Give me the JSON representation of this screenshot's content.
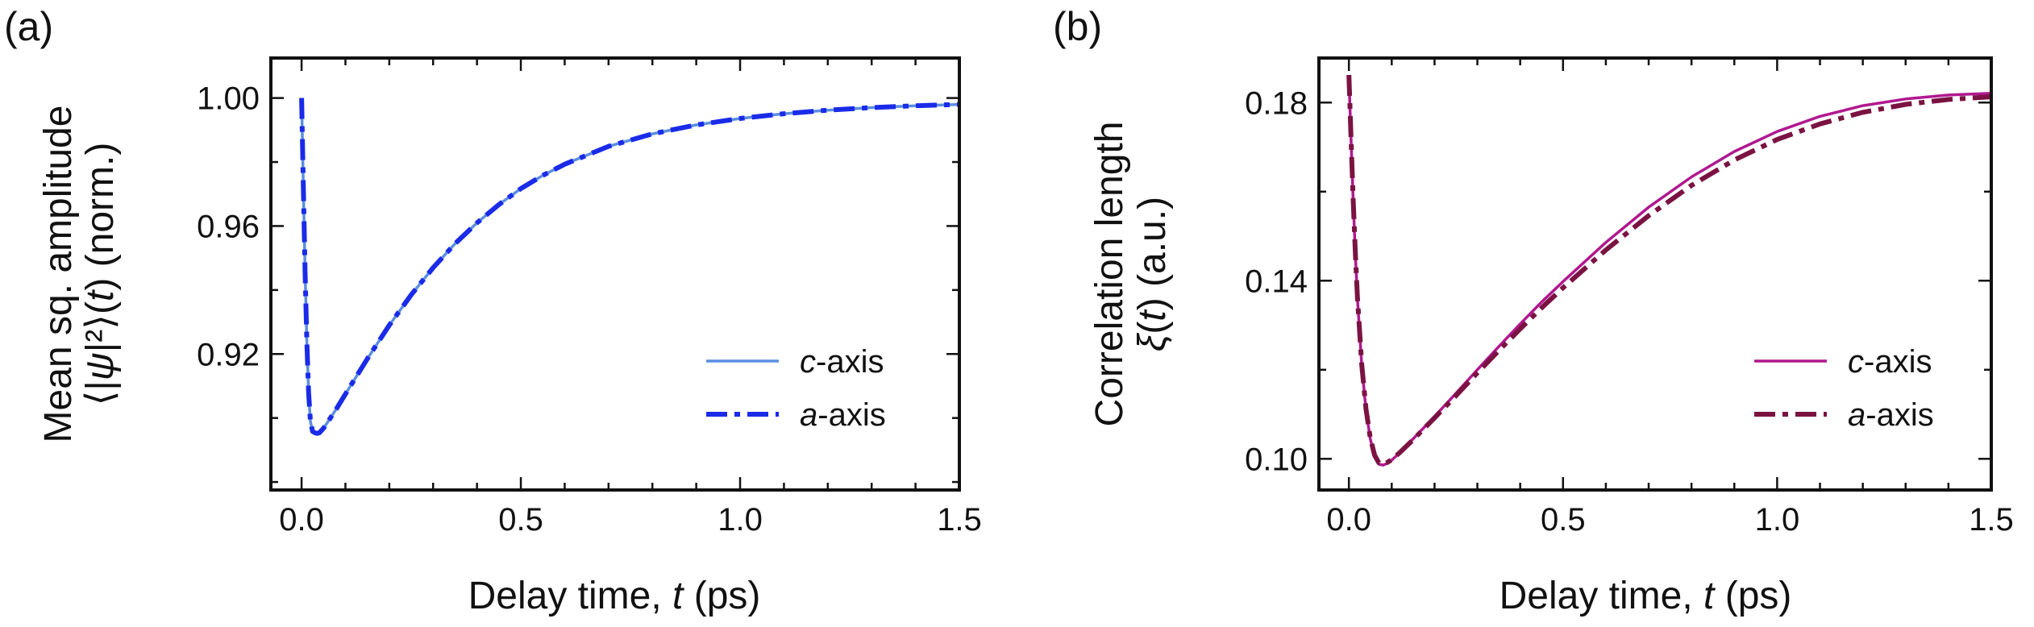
{
  "figure": {
    "panels": [
      {
        "label": "(a)",
        "ylabel_line1": "Mean sq. amplitude",
        "ylabel_line2_parts": [
          "⟨|",
          "ψ",
          "|²⟩(",
          "t",
          ") (norm.)"
        ],
        "xlabel_parts": [
          "Delay time, ",
          "t",
          " (ps)"
        ]
      },
      {
        "label": "(b)",
        "ylabel_line1": "Correlation length",
        "ylabel_line2_parts": [
          "ξ",
          "(",
          "t",
          ") (a.u.)"
        ],
        "xlabel_parts": [
          "Delay time, ",
          "t",
          " (ps)"
        ]
      }
    ]
  },
  "chart_data": [
    {
      "type": "line",
      "panel": "(a)",
      "xlabel": "Delay time, t (ps)",
      "ylabel": "Mean sq. amplitude ⟨|ψ|²⟩(t) (norm.)",
      "xlim": [
        -0.07,
        1.5
      ],
      "ylim": [
        0.8775,
        1.0125
      ],
      "xticks": [
        0.0,
        0.5,
        1.0,
        1.5
      ],
      "xtick_labels": [
        "0.0",
        "0.5",
        "1.0",
        "1.5"
      ],
      "yticks": [
        0.92,
        0.96,
        1.0
      ],
      "ytick_labels": [
        "0.92",
        "0.96",
        "1.00"
      ],
      "legend_position": "lower-right",
      "series": [
        {
          "name": "c-axis",
          "name_italic": "c",
          "name_rest": "-axis",
          "color": "#5b8ee0",
          "style": "solid",
          "x": [
            0.0,
            0.004,
            0.008,
            0.012,
            0.016,
            0.02,
            0.025,
            0.03,
            0.035,
            0.04,
            0.05,
            0.06,
            0.08,
            0.1,
            0.15,
            0.2,
            0.25,
            0.3,
            0.35,
            0.4,
            0.45,
            0.5,
            0.55,
            0.6,
            0.7,
            0.8,
            0.9,
            1.0,
            1.1,
            1.2,
            1.3,
            1.4,
            1.5
          ],
          "y": [
            1.0,
            0.972,
            0.946,
            0.924,
            0.908,
            0.899,
            0.8958,
            0.8954,
            0.8952,
            0.8953,
            0.8968,
            0.8988,
            0.903,
            0.9075,
            0.9185,
            0.929,
            0.9385,
            0.947,
            0.9545,
            0.961,
            0.9667,
            0.9717,
            0.9758,
            0.9793,
            0.9849,
            0.9888,
            0.9916,
            0.9936,
            0.9951,
            0.9962,
            0.997,
            0.9976,
            0.998
          ]
        },
        {
          "name": "a-axis",
          "name_italic": "a",
          "name_rest": "-axis",
          "color": "#1a2be8",
          "style": "dashdot",
          "x": [
            0.0,
            0.004,
            0.008,
            0.012,
            0.016,
            0.02,
            0.025,
            0.03,
            0.035,
            0.04,
            0.05,
            0.06,
            0.08,
            0.1,
            0.15,
            0.2,
            0.25,
            0.3,
            0.35,
            0.4,
            0.45,
            0.5,
            0.55,
            0.6,
            0.7,
            0.8,
            0.9,
            1.0,
            1.1,
            1.2,
            1.3,
            1.4,
            1.5
          ],
          "y": [
            1.0,
            0.972,
            0.946,
            0.924,
            0.908,
            0.899,
            0.8958,
            0.8954,
            0.8952,
            0.8953,
            0.8968,
            0.8988,
            0.903,
            0.9075,
            0.9185,
            0.929,
            0.9385,
            0.947,
            0.9545,
            0.961,
            0.9667,
            0.9717,
            0.9758,
            0.9793,
            0.9849,
            0.9888,
            0.9916,
            0.9936,
            0.9951,
            0.9962,
            0.997,
            0.9976,
            0.998
          ]
        }
      ]
    },
    {
      "type": "line",
      "panel": "(b)",
      "xlabel": "Delay time, t (ps)",
      "ylabel": "Correlation length ξ(t) (a.u.)",
      "xlim": [
        -0.07,
        1.5
      ],
      "ylim": [
        0.093,
        0.19
      ],
      "xticks": [
        0.0,
        0.5,
        1.0,
        1.5
      ],
      "xtick_labels": [
        "0.0",
        "0.5",
        "1.0",
        "1.5"
      ],
      "yticks": [
        0.1,
        0.14,
        0.18
      ],
      "ytick_labels": [
        "0.10",
        "0.14",
        "0.18"
      ],
      "legend_position": "lower-right",
      "series": [
        {
          "name": "c-axis",
          "name_italic": "c",
          "name_rest": "-axis",
          "color": "#b0188f",
          "style": "solid",
          "x": [
            0.0,
            0.005,
            0.01,
            0.015,
            0.02,
            0.03,
            0.04,
            0.05,
            0.06,
            0.07,
            0.08,
            0.09,
            0.1,
            0.12,
            0.15,
            0.2,
            0.25,
            0.3,
            0.35,
            0.4,
            0.45,
            0.5,
            0.6,
            0.7,
            0.8,
            0.9,
            1.0,
            1.1,
            1.2,
            1.3,
            1.4,
            1.5
          ],
          "y": [
            0.186,
            0.172,
            0.158,
            0.146,
            0.136,
            0.121,
            0.111,
            0.1045,
            0.1005,
            0.0988,
            0.0986,
            0.099,
            0.0997,
            0.1015,
            0.1045,
            0.1095,
            0.1147,
            0.12,
            0.1252,
            0.1303,
            0.1352,
            0.1398,
            0.1486,
            0.1565,
            0.1633,
            0.169,
            0.1735,
            0.1769,
            0.1793,
            0.1808,
            0.1817,
            0.1821
          ]
        },
        {
          "name": "a-axis",
          "name_italic": "a",
          "name_rest": "-axis",
          "color": "#7a1342",
          "style": "dashdot",
          "x": [
            0.0,
            0.005,
            0.01,
            0.015,
            0.02,
            0.03,
            0.04,
            0.05,
            0.06,
            0.07,
            0.08,
            0.09,
            0.1,
            0.12,
            0.15,
            0.2,
            0.25,
            0.3,
            0.35,
            0.4,
            0.45,
            0.5,
            0.6,
            0.7,
            0.8,
            0.9,
            1.0,
            1.1,
            1.2,
            1.3,
            1.4,
            1.5
          ],
          "y": [
            0.1862,
            0.1722,
            0.1582,
            0.1462,
            0.1362,
            0.1212,
            0.1112,
            0.1047,
            0.1008,
            0.0991,
            0.0988,
            0.0992,
            0.0998,
            0.1015,
            0.1043,
            0.1092,
            0.1142,
            0.1193,
            0.1243,
            0.1292,
            0.1339,
            0.1384,
            0.1469,
            0.1546,
            0.1614,
            0.1671,
            0.1717,
            0.1752,
            0.1778,
            0.1796,
            0.1807,
            0.1813
          ]
        }
      ]
    }
  ]
}
